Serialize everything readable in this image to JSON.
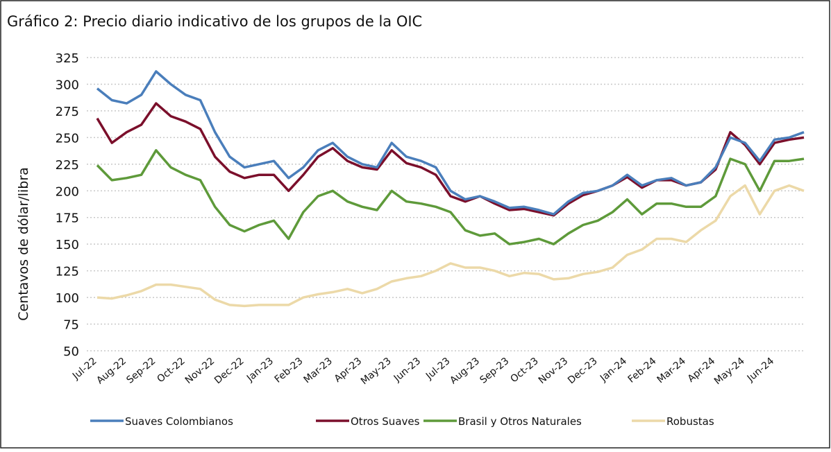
{
  "chart_data": {
    "type": "line",
    "title": "Gráfico 2: Precio diario indicativo de los grupos de la OIC",
    "y_label": "Centavos de dólar/libra",
    "categories": [
      "Jul-22",
      null,
      "Aug-22",
      null,
      "Sep-22",
      null,
      "Oct-22",
      null,
      "Nov-22",
      null,
      "Dec-22",
      null,
      "Jan-23",
      null,
      "Feb-23",
      null,
      "Mar-23",
      null,
      "Apr-23",
      null,
      "May-23",
      null,
      "Jun-23",
      null,
      "Jul-23",
      null,
      "Aug-23",
      null,
      "Sep-23",
      null,
      "Oct-23",
      null,
      "Nov-23",
      null,
      "Dec-23",
      null,
      "Jan-24",
      null,
      "Feb-24",
      null,
      "Mar-24",
      null,
      "Apr-24",
      null,
      "May-24",
      null,
      "Jun-24",
      null,
      null
    ],
    "series": [
      {
        "name": "Suaves Colombianos",
        "color": "#4a7ebb",
        "values": [
          296,
          285,
          282,
          290,
          312,
          300,
          290,
          285,
          255,
          232,
          222,
          225,
          228,
          212,
          222,
          238,
          245,
          232,
          225,
          222,
          245,
          232,
          228,
          222,
          200,
          192,
          195,
          190,
          184,
          185,
          182,
          178,
          190,
          198,
          200,
          205,
          215,
          205,
          210,
          212,
          205,
          208,
          222,
          250,
          245,
          228,
          248,
          250,
          255
        ]
      },
      {
        "name": "Otros Suaves",
        "color": "#7b0f2b",
        "values": [
          268,
          245,
          255,
          262,
          282,
          270,
          265,
          258,
          232,
          218,
          212,
          215,
          215,
          200,
          215,
          232,
          240,
          228,
          222,
          220,
          238,
          226,
          222,
          215,
          195,
          190,
          195,
          188,
          182,
          183,
          180,
          177,
          188,
          196,
          200,
          205,
          213,
          203,
          210,
          210,
          205,
          208,
          220,
          255,
          243,
          225,
          245,
          248,
          250
        ]
      },
      {
        "name": "Brasil y Otros Naturales",
        "color": "#5e9a3a",
        "values": [
          224,
          210,
          212,
          215,
          238,
          222,
          215,
          210,
          185,
          168,
          162,
          168,
          172,
          155,
          180,
          195,
          200,
          190,
          185,
          182,
          200,
          190,
          188,
          185,
          180,
          163,
          158,
          160,
          150,
          152,
          155,
          150,
          160,
          168,
          172,
          180,
          192,
          178,
          188,
          188,
          185,
          185,
          195,
          230,
          225,
          200,
          228,
          228,
          230
        ]
      },
      {
        "name": "Robustas",
        "color": "#ecd9a8",
        "values": [
          100,
          99,
          102,
          106,
          112,
          112,
          110,
          108,
          98,
          93,
          92,
          93,
          93,
          93,
          100,
          103,
          105,
          108,
          104,
          108,
          115,
          118,
          120,
          125,
          132,
          128,
          128,
          125,
          120,
          123,
          122,
          117,
          118,
          122,
          124,
          128,
          140,
          145,
          155,
          155,
          152,
          163,
          172,
          195,
          205,
          178,
          200,
          205,
          200
        ]
      }
    ],
    "ylim": [
      50,
      325
    ],
    "yticks": [
      50,
      75,
      100,
      125,
      150,
      175,
      200,
      225,
      250,
      275,
      300,
      325
    ],
    "grid": true,
    "legend": "bottom"
  }
}
